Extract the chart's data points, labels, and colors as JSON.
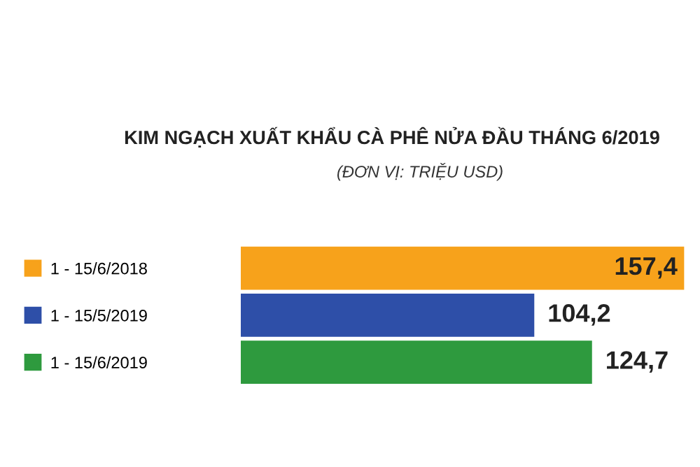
{
  "chart_data": {
    "type": "bar",
    "orientation": "horizontal",
    "title": "KIM NGẠCH XUẤT KHẨU CÀ PHÊ NỬA ĐẦU THÁNG 6/2019",
    "subtitle": "(ĐƠN VỊ: TRIỆU USD)",
    "categories": [
      "1 - 15/6/2018",
      "1 - 15/5/2019",
      "1 - 15/6/2019"
    ],
    "values": [
      157.4,
      104.2,
      124.7
    ],
    "colors": [
      "#f7a21b",
      "#2e4fa8",
      "#2e9a3e"
    ],
    "value_labels": [
      "157,4",
      "104,2",
      "124,7"
    ],
    "grid": false,
    "legend": false
  }
}
